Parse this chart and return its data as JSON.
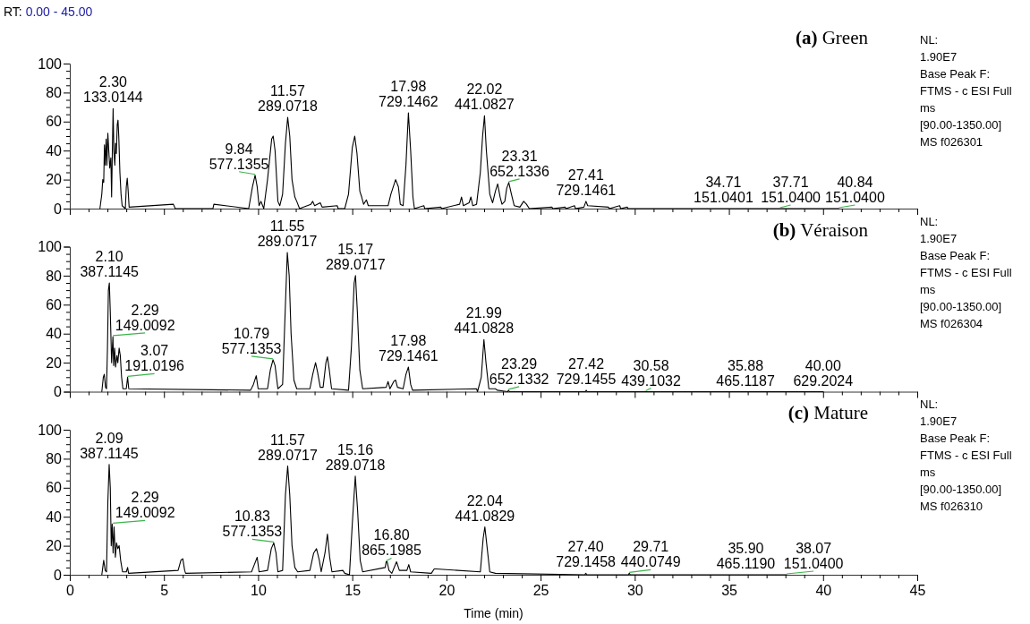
{
  "chart_data": [
    {
      "type": "line",
      "title": "(a) Green",
      "subtitle": "RT: 0.00 - 45.00",
      "tick_labels": "y",
      "series": [
        {
          "color": "#000000",
          "x": [
            1.6,
            1.7,
            1.75,
            1.8,
            1.84,
            1.88,
            1.93,
            1.97,
            2.02,
            2.07,
            2.12,
            2.18,
            2.22,
            2.26,
            2.3,
            2.34,
            2.39,
            2.43,
            2.47,
            2.52,
            2.56,
            2.6,
            2.66,
            2.72,
            2.78,
            2.95,
            3,
            3.05,
            3.1,
            3.15,
            5.5,
            5.6,
            7.6,
            7.65,
            9.5,
            9.7,
            9.84,
            9.95,
            10.05,
            10.15,
            10.3,
            10.5,
            10.72,
            10.8,
            10.9,
            11.05,
            11.15,
            11.3,
            11.45,
            11.57,
            11.68,
            11.8,
            11.95,
            12.05,
            12.2,
            12.8,
            12.9,
            13,
            13.3,
            13.4,
            14.2,
            14.25,
            14.6,
            14.8,
            15,
            15.13,
            15.25,
            15.4,
            15.5,
            15.6,
            15.75,
            15.85,
            16.9,
            17.05,
            17.3,
            17.45,
            17.55,
            17.7,
            17.85,
            17.98,
            18.1,
            18.22,
            18.3,
            18.8,
            18.85,
            19.7,
            19.75,
            20.7,
            20.8,
            20.9,
            21.2,
            21.3,
            21.4,
            21.6,
            21.8,
            21.92,
            22.02,
            22.12,
            22.3,
            22.45,
            22.6,
            22.72,
            22.85,
            22.95,
            23.1,
            23.2,
            23.31,
            23.45,
            23.6,
            23.9,
            24.1,
            24.25,
            24.4,
            25.6,
            25.65,
            26.3,
            26.35,
            26.8,
            26.85,
            27.3,
            27.41,
            27.5,
            28.6,
            28.65,
            29.2,
            29.25,
            29.6,
            29.65,
            34.71,
            37.71,
            40.84
          ],
          "values": [
            0,
            10,
            20,
            18,
            44,
            30,
            48,
            30,
            52,
            40,
            28,
            35,
            8,
            40,
            69,
            40,
            30,
            45,
            38,
            58,
            61,
            50,
            25,
            10,
            2,
            0,
            15,
            21,
            12,
            1,
            3,
            0,
            0,
            3,
            0,
            15,
            23,
            15,
            2,
            5,
            0,
            20,
            48,
            50,
            40,
            5,
            2,
            10,
            45,
            63,
            50,
            20,
            8,
            5,
            0,
            3,
            5,
            2,
            4,
            1,
            2,
            0,
            0,
            10,
            42,
            50,
            38,
            12,
            8,
            3,
            6,
            2,
            2,
            10,
            20,
            15,
            3,
            2,
            30,
            66,
            40,
            8,
            0,
            2,
            0,
            1,
            0,
            3,
            8,
            2,
            4,
            8,
            2,
            3,
            25,
            50,
            64,
            40,
            10,
            4,
            12,
            17,
            8,
            3,
            5,
            14,
            18,
            10,
            2,
            1,
            5,
            3,
            0,
            1,
            0,
            1,
            0,
            2,
            0,
            1,
            5,
            2,
            1,
            0,
            2,
            0,
            1,
            0,
            0,
            0,
            0
          ]
        }
      ],
      "xlim": [
        0,
        45
      ],
      "xticks": [
        0,
        {
          "value": 1,
          "label": null
        },
        {
          "value": 2,
          "label": null
        },
        {
          "value": 3,
          "label": null
        },
        {
          "value": 4,
          "label": null
        },
        5,
        {
          "value": 6,
          "label": null
        },
        {
          "value": 7,
          "label": null
        },
        {
          "value": 8,
          "label": null
        },
        {
          "value": 9,
          "label": null
        },
        10,
        {
          "value": 11,
          "label": null
        },
        {
          "value": 12,
          "label": null
        },
        {
          "value": 13,
          "label": null
        },
        {
          "value": 14,
          "label": null
        },
        15,
        {
          "value": 16,
          "label": null
        },
        {
          "value": 17,
          "label": null
        },
        {
          "value": 18,
          "label": null
        },
        {
          "value": 19,
          "label": null
        },
        20,
        {
          "value": 21,
          "label": null
        },
        {
          "value": 22,
          "label": null
        },
        {
          "value": 23,
          "label": null
        },
        {
          "value": 24,
          "label": null
        },
        25,
        {
          "value": 26,
          "label": null
        },
        {
          "value": 27,
          "label": null
        },
        {
          "value": 28,
          "label": null
        },
        {
          "value": 29,
          "label": null
        },
        30,
        {
          "value": 31,
          "label": null
        },
        {
          "value": 32,
          "label": null
        },
        {
          "value": 33,
          "label": null
        },
        {
          "value": 34,
          "label": null
        },
        35,
        {
          "value": 36,
          "label": null
        },
        {
          "value": 37,
          "label": null
        },
        {
          "value": 38,
          "label": null
        },
        {
          "value": 39,
          "label": null
        },
        40,
        {
          "value": 41,
          "label": null
        },
        {
          "value": 42,
          "label": null
        },
        {
          "value": 43,
          "label": null
        },
        {
          "value": 44,
          "label": null
        },
        45
      ],
      "ylim": [
        0,
        100
      ],
      "yticks": [
        0,
        {
          "value": 5,
          "label": null
        },
        {
          "value": 10,
          "label": null
        },
        {
          "value": 15,
          "label": null
        },
        20,
        {
          "value": 25,
          "label": null
        },
        {
          "value": 30,
          "label": null
        },
        {
          "value": 35,
          "label": null
        },
        40,
        {
          "value": 45,
          "label": null
        },
        {
          "value": 50,
          "label": null
        },
        {
          "value": 55,
          "label": null
        },
        60,
        {
          "value": 65,
          "label": null
        },
        {
          "value": 70,
          "label": null
        },
        {
          "value": 75,
          "label": null
        },
        80,
        {
          "value": 85,
          "label": null
        },
        {
          "value": 90,
          "label": null
        },
        {
          "value": 95,
          "label": null
        },
        100
      ],
      "annotations": [
        "NL:\n1.90E7\nBase Peak F:\nFTMS - c ESI Full\nms\n[90.00-1350.00]\nMS f026301",
        {
          "text": "2.30\n133.0144",
          "x": 2.3,
          "y": 69
        },
        {
          "text": "9.84\n577.1355",
          "x": 9.84,
          "y": 23
        },
        {
          "text": "11.57\n289.0718",
          "x": 11.57,
          "y": 63
        },
        {
          "text": "17.98\n729.1462",
          "x": 17.98,
          "y": 66
        },
        {
          "text": "22.02\n441.0827",
          "x": 22.02,
          "y": 64
        },
        {
          "text": "23.31\n652.1336",
          "x": 23.31,
          "y": 18
        },
        {
          "text": "27.41\n729.1461",
          "x": 27.41,
          "y": 5
        },
        {
          "text": "34.71\n151.0401",
          "x": 34.71,
          "y": 0
        },
        {
          "text": "37.71\n151.0400",
          "x": 37.71,
          "y": 0
        },
        {
          "text": "40.84\n151.0400",
          "x": 40.84,
          "y": 0
        }
      ]
    },
    {
      "type": "line",
      "title": "(b) Véraison",
      "tick_labels": "y",
      "series": [
        {
          "color": "#000000",
          "x": [
            1.7,
            1.78,
            1.83,
            1.9,
            1.95,
            2,
            2.05,
            2.1,
            2.15,
            2.22,
            2.29,
            2.33,
            2.38,
            2.43,
            2.5,
            2.55,
            2.62,
            2.68,
            2.75,
            2.82,
            3,
            3.07,
            3.13,
            9.6,
            9.75,
            9.9,
            10,
            10.5,
            10.65,
            10.79,
            10.9,
            11.05,
            11.3,
            11.45,
            11.55,
            11.65,
            11.75,
            11.9,
            12.05,
            12.75,
            12.9,
            13.05,
            13.15,
            13.3,
            13.45,
            13.6,
            13.68,
            13.78,
            13.9,
            14.8,
            14.95,
            15.1,
            15.17,
            15.27,
            15.4,
            15.55,
            16.8,
            16.9,
            17,
            17.2,
            17.3,
            17.4,
            17.7,
            17.85,
            17.98,
            18.1,
            18.2,
            21.6,
            21.65,
            21.85,
            21.99,
            22.1,
            22.25,
            22.6,
            22.7,
            23.25,
            23.29,
            23.35,
            27.38,
            27.42,
            27.47,
            30.58,
            35.88,
            40
          ],
          "values": [
            0,
            10,
            12,
            3,
            2,
            30,
            70,
            75,
            55,
            20,
            38,
            18,
            30,
            17,
            25,
            20,
            30,
            25,
            10,
            2,
            2,
            10,
            2,
            1,
            5,
            11,
            2,
            2,
            15,
            22,
            18,
            2,
            5,
            60,
            96,
            80,
            40,
            8,
            2,
            2,
            12,
            20,
            14,
            3,
            3,
            20,
            24,
            15,
            2,
            1,
            30,
            75,
            80,
            55,
            15,
            2,
            3,
            7,
            2,
            7,
            8,
            3,
            2,
            12,
            17,
            5,
            1,
            2,
            0,
            10,
            36,
            20,
            2,
            2,
            1,
            0,
            1,
            0,
            0,
            1,
            0,
            0,
            0,
            0
          ]
        }
      ],
      "xlim": [
        0,
        45
      ],
      "xticks": [
        0,
        {
          "value": 1,
          "label": null
        },
        {
          "value": 2,
          "label": null
        },
        {
          "value": 3,
          "label": null
        },
        {
          "value": 4,
          "label": null
        },
        5,
        {
          "value": 6,
          "label": null
        },
        {
          "value": 7,
          "label": null
        },
        {
          "value": 8,
          "label": null
        },
        {
          "value": 9,
          "label": null
        },
        10,
        {
          "value": 11,
          "label": null
        },
        {
          "value": 12,
          "label": null
        },
        {
          "value": 13,
          "label": null
        },
        {
          "value": 14,
          "label": null
        },
        15,
        {
          "value": 16,
          "label": null
        },
        {
          "value": 17,
          "label": null
        },
        {
          "value": 18,
          "label": null
        },
        {
          "value": 19,
          "label": null
        },
        20,
        {
          "value": 21,
          "label": null
        },
        {
          "value": 22,
          "label": null
        },
        {
          "value": 23,
          "label": null
        },
        {
          "value": 24,
          "label": null
        },
        25,
        {
          "value": 26,
          "label": null
        },
        {
          "value": 27,
          "label": null
        },
        {
          "value": 28,
          "label": null
        },
        {
          "value": 29,
          "label": null
        },
        30,
        {
          "value": 31,
          "label": null
        },
        {
          "value": 32,
          "label": null
        },
        {
          "value": 33,
          "label": null
        },
        {
          "value": 34,
          "label": null
        },
        35,
        {
          "value": 36,
          "label": null
        },
        {
          "value": 37,
          "label": null
        },
        {
          "value": 38,
          "label": null
        },
        {
          "value": 39,
          "label": null
        },
        40,
        {
          "value": 41,
          "label": null
        },
        {
          "value": 42,
          "label": null
        },
        {
          "value": 43,
          "label": null
        },
        {
          "value": 44,
          "label": null
        },
        45
      ],
      "ylim": [
        0,
        100
      ],
      "yticks": [
        0,
        {
          "value": 5,
          "label": null
        },
        {
          "value": 10,
          "label": null
        },
        {
          "value": 15,
          "label": null
        },
        20,
        {
          "value": 25,
          "label": null
        },
        {
          "value": 30,
          "label": null
        },
        {
          "value": 35,
          "label": null
        },
        40,
        {
          "value": 45,
          "label": null
        },
        {
          "value": 50,
          "label": null
        },
        {
          "value": 55,
          "label": null
        },
        60,
        {
          "value": 65,
          "label": null
        },
        {
          "value": 70,
          "label": null
        },
        {
          "value": 75,
          "label": null
        },
        80,
        {
          "value": 85,
          "label": null
        },
        {
          "value": 90,
          "label": null
        },
        {
          "value": 95,
          "label": null
        },
        100
      ],
      "annotations": [
        "NL:\n1.90E7\nBase Peak F:\nFTMS - c ESI Full\nms\n[90.00-1350.00]\nMS f026304",
        {
          "text": "2.10\n387.1145",
          "x": 2.1,
          "y": 75
        },
        {
          "text": "2.29\n149.0092",
          "x": 2.29,
          "y": 38
        },
        {
          "text": "3.07\n191.0196",
          "x": 3.07,
          "y": 10
        },
        {
          "text": "10.79\n577.1353",
          "x": 10.79,
          "y": 22
        },
        {
          "text": "11.55\n289.0717",
          "x": 11.55,
          "y": 96
        },
        {
          "text": "15.17\n289.0717",
          "x": 15.17,
          "y": 80
        },
        {
          "text": "17.98\n729.1461",
          "x": 17.98,
          "y": 17
        },
        {
          "text": "21.99\n441.0828",
          "x": 21.99,
          "y": 36
        },
        {
          "text": "23.29\n652.1332",
          "x": 23.29,
          "y": 1
        },
        {
          "text": "27.42\n729.1455",
          "x": 27.42,
          "y": 1
        },
        {
          "text": "30.58\n439.1032",
          "x": 30.58,
          "y": 0
        },
        {
          "text": "35.88\n465.1187",
          "x": 35.88,
          "y": 0
        },
        {
          "text": "40.00\n629.2024",
          "x": 40,
          "y": 0
        }
      ]
    },
    {
      "type": "line",
      "title": "(c) Mature",
      "xlabel": "Time (min)",
      "series": [
        {
          "color": "#000000",
          "x": [
            1.7,
            1.75,
            1.8,
            1.88,
            1.95,
            2.02,
            2.09,
            2.15,
            2.2,
            2.25,
            2.3,
            2.35,
            2.42,
            2.48,
            2.55,
            2.62,
            2.7,
            2.8,
            3,
            3.07,
            3.12,
            5.75,
            5.9,
            6,
            6.1,
            6.15,
            9.65,
            9.8,
            9.95,
            10.05,
            10.5,
            10.7,
            10.83,
            10.95,
            11.05,
            11.3,
            11.45,
            11.57,
            11.68,
            11.8,
            11.95,
            12.1,
            12.75,
            12.95,
            13.1,
            13.25,
            13.35,
            13.55,
            13.68,
            13.8,
            13.92,
            14.5,
            14.6,
            14.85,
            15,
            15.16,
            15.28,
            15.42,
            15.55,
            16.75,
            16.8,
            16.85,
            16.95,
            17.1,
            17.35,
            17.5,
            17.9,
            18,
            18.1,
            19.2,
            19.35,
            19.45,
            21.8,
            21.95,
            22.04,
            22.15,
            22.3,
            22.6,
            27.35,
            27.4,
            27.45,
            29.66,
            29.71,
            29.76,
            35.9,
            38.07
          ],
          "values": [
            0,
            5,
            10,
            3,
            2,
            50,
            76,
            60,
            20,
            35,
            15,
            33,
            12,
            22,
            18,
            20,
            10,
            2,
            2,
            5,
            1,
            3,
            10,
            11,
            3,
            1,
            2,
            7,
            12,
            2,
            3,
            18,
            22,
            15,
            2,
            3,
            55,
            75,
            55,
            20,
            5,
            2,
            3,
            15,
            18,
            10,
            2,
            15,
            28,
            12,
            2,
            3,
            1,
            0,
            35,
            68,
            45,
            10,
            2,
            5,
            9,
            9,
            3,
            1,
            9,
            3,
            3,
            7,
            2,
            1,
            4,
            4,
            2,
            25,
            33,
            20,
            2,
            1,
            0,
            1,
            0,
            0,
            1,
            0,
            0,
            0
          ]
        }
      ],
      "xlim": [
        0,
        45
      ],
      "xticks": [
        0,
        {
          "value": 1,
          "label": null
        },
        {
          "value": 2,
          "label": null
        },
        {
          "value": 3,
          "label": null
        },
        {
          "value": 4,
          "label": null
        },
        5,
        {
          "value": 6,
          "label": null
        },
        {
          "value": 7,
          "label": null
        },
        {
          "value": 8,
          "label": null
        },
        {
          "value": 9,
          "label": null
        },
        10,
        {
          "value": 11,
          "label": null
        },
        {
          "value": 12,
          "label": null
        },
        {
          "value": 13,
          "label": null
        },
        {
          "value": 14,
          "label": null
        },
        15,
        {
          "value": 16,
          "label": null
        },
        {
          "value": 17,
          "label": null
        },
        {
          "value": 18,
          "label": null
        },
        {
          "value": 19,
          "label": null
        },
        20,
        {
          "value": 21,
          "label": null
        },
        {
          "value": 22,
          "label": null
        },
        {
          "value": 23,
          "label": null
        },
        {
          "value": 24,
          "label": null
        },
        25,
        {
          "value": 26,
          "label": null
        },
        {
          "value": 27,
          "label": null
        },
        {
          "value": 28,
          "label": null
        },
        {
          "value": 29,
          "label": null
        },
        30,
        {
          "value": 31,
          "label": null
        },
        {
          "value": 32,
          "label": null
        },
        {
          "value": 33,
          "label": null
        },
        {
          "value": 34,
          "label": null
        },
        35,
        {
          "value": 36,
          "label": null
        },
        {
          "value": 37,
          "label": null
        },
        {
          "value": 38,
          "label": null
        },
        {
          "value": 39,
          "label": null
        },
        40,
        {
          "value": 41,
          "label": null
        },
        {
          "value": 42,
          "label": null
        },
        {
          "value": 43,
          "label": null
        },
        {
          "value": 44,
          "label": null
        },
        45
      ],
      "ylim": [
        0,
        100
      ],
      "yticks": [
        0,
        {
          "value": 5,
          "label": null
        },
        {
          "value": 10,
          "label": null
        },
        {
          "value": 15,
          "label": null
        },
        20,
        {
          "value": 25,
          "label": null
        },
        {
          "value": 30,
          "label": null
        },
        {
          "value": 35,
          "label": null
        },
        40,
        {
          "value": 45,
          "label": null
        },
        {
          "value": 50,
          "label": null
        },
        {
          "value": 55,
          "label": null
        },
        60,
        {
          "value": 65,
          "label": null
        },
        {
          "value": 70,
          "label": null
        },
        {
          "value": 75,
          "label": null
        },
        80,
        {
          "value": 85,
          "label": null
        },
        {
          "value": 90,
          "label": null
        },
        {
          "value": 95,
          "label": null
        },
        100
      ],
      "annotations": [
        "NL:\n1.90E7\nBase Peak F:\nFTMS - c ESI Full\nms\n[90.00-1350.00]\nMS f026310",
        {
          "text": "2.09\n387.1145",
          "x": 2.09,
          "y": 76
        },
        {
          "text": "2.29\n149.0092",
          "x": 2.29,
          "y": 35
        },
        {
          "text": "10.83\n577.1353",
          "x": 10.83,
          "y": 22
        },
        {
          "text": "11.57\n289.0717",
          "x": 11.57,
          "y": 75
        },
        {
          "text": "15.16\n289.0718",
          "x": 15.16,
          "y": 68
        },
        {
          "text": "16.80\n865.1985",
          "x": 16.8,
          "y": 9
        },
        {
          "text": "22.04\n441.0829",
          "x": 22.04,
          "y": 33
        },
        {
          "text": "27.40\n729.1458",
          "x": 27.4,
          "y": 1
        },
        {
          "text": "29.71\n440.0749",
          "x": 29.71,
          "y": 1
        },
        {
          "text": "35.90\n465.1190",
          "x": 35.9,
          "y": 0
        },
        {
          "text": "38.07\n151.0400",
          "x": 38.07,
          "y": 0
        }
      ]
    }
  ]
}
